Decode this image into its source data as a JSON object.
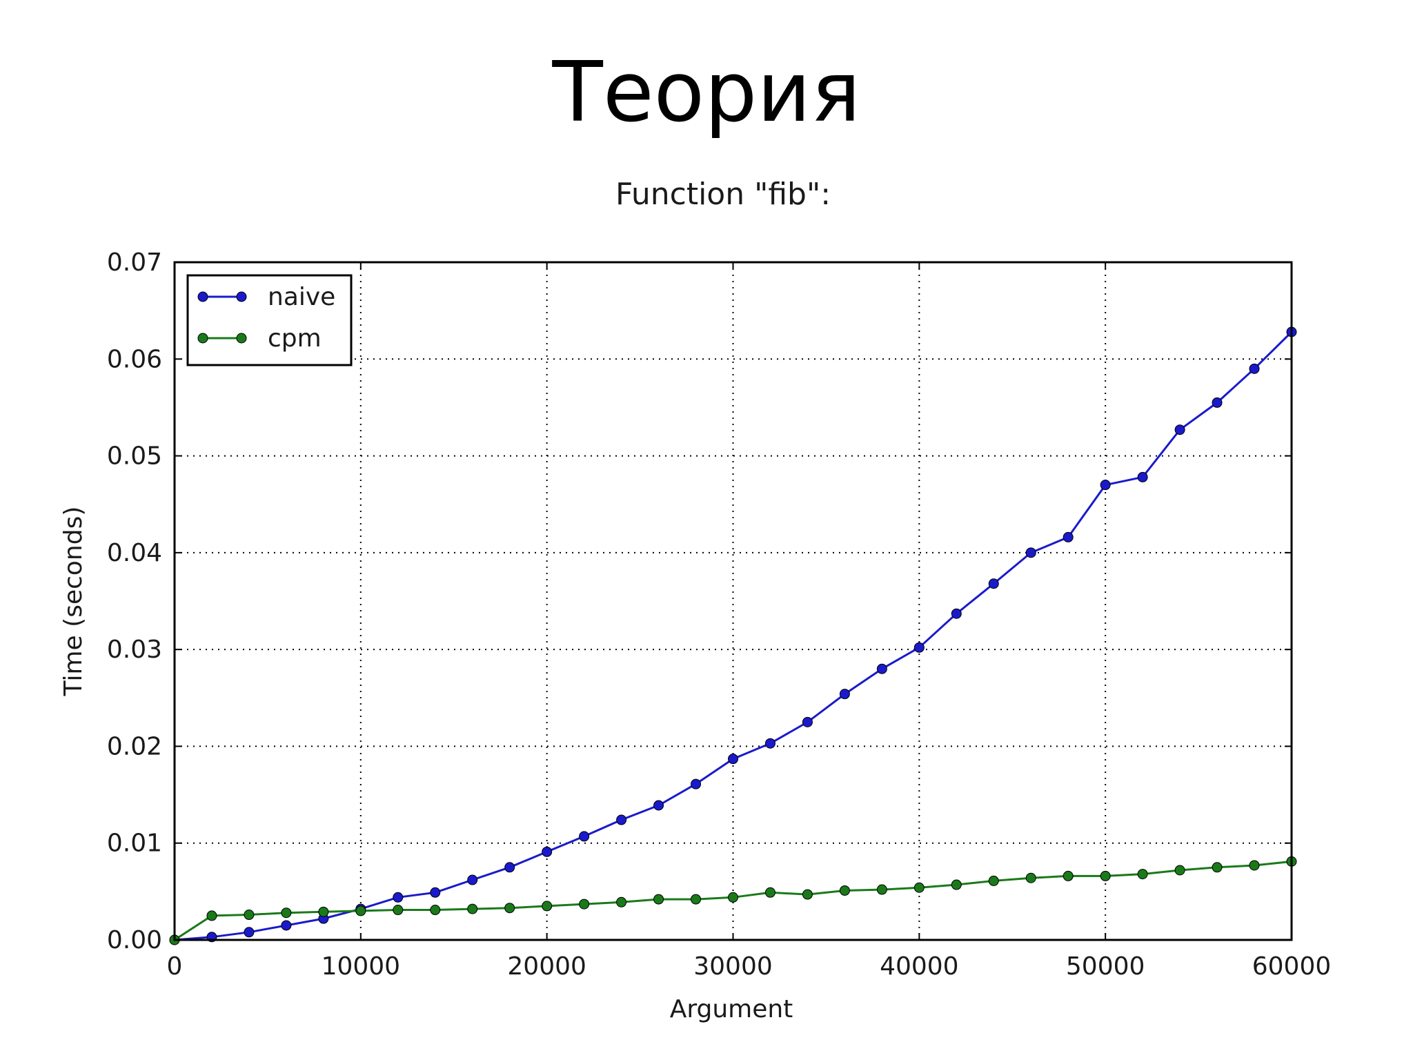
{
  "slide": {
    "title": "Теория"
  },
  "colors": {
    "naive": "#1a1acc",
    "cpm": "#1a7a1a",
    "grid": "#000000",
    "axes": "#000000"
  },
  "chart_data": {
    "type": "line",
    "title": "Function \"fib\":",
    "xlabel": "Argument",
    "ylabel": "Time (seconds)",
    "xlim": [
      0,
      60000
    ],
    "ylim": [
      0,
      0.07
    ],
    "xticks": [
      0,
      10000,
      20000,
      30000,
      40000,
      50000,
      60000
    ],
    "xtick_labels": [
      "0",
      "10000",
      "20000",
      "30000",
      "40000",
      "50000",
      "60000"
    ],
    "yticks": [
      0,
      0.01,
      0.02,
      0.03,
      0.04,
      0.05,
      0.06,
      0.07
    ],
    "ytick_labels": [
      "0.00",
      "0.01",
      "0.02",
      "0.03",
      "0.04",
      "0.05",
      "0.06",
      "0.07"
    ],
    "grid": true,
    "legend_position": "top-left",
    "x": [
      0,
      2000,
      4000,
      6000,
      8000,
      10000,
      12000,
      14000,
      16000,
      18000,
      20000,
      22000,
      24000,
      26000,
      28000,
      30000,
      32000,
      34000,
      36000,
      38000,
      40000,
      42000,
      44000,
      46000,
      48000,
      50000,
      52000,
      54000,
      56000,
      58000,
      60000
    ],
    "series": [
      {
        "name": "naive",
        "color": "#1a1acc",
        "values": [
          0.0,
          0.0003,
          0.0008,
          0.0015,
          0.0022,
          0.0032,
          0.0044,
          0.0049,
          0.0062,
          0.0075,
          0.0091,
          0.0107,
          0.0124,
          0.0139,
          0.0161,
          0.0187,
          0.0203,
          0.0225,
          0.0254,
          0.028,
          0.0302,
          0.0337,
          0.0368,
          0.04,
          0.0416,
          0.047,
          0.0478,
          0.0527,
          0.0555,
          0.059,
          0.0628
        ]
      },
      {
        "name": "cpm",
        "color": "#1a7a1a",
        "values": [
          0.0,
          0.0025,
          0.0026,
          0.0028,
          0.0029,
          0.003,
          0.0031,
          0.0031,
          0.0032,
          0.0033,
          0.0035,
          0.0037,
          0.0039,
          0.0042,
          0.0042,
          0.0044,
          0.0049,
          0.0047,
          0.0051,
          0.0052,
          0.0054,
          0.0057,
          0.0061,
          0.0064,
          0.0066,
          0.0066,
          0.0068,
          0.0072,
          0.0075,
          0.0077,
          0.0081
        ]
      }
    ]
  }
}
